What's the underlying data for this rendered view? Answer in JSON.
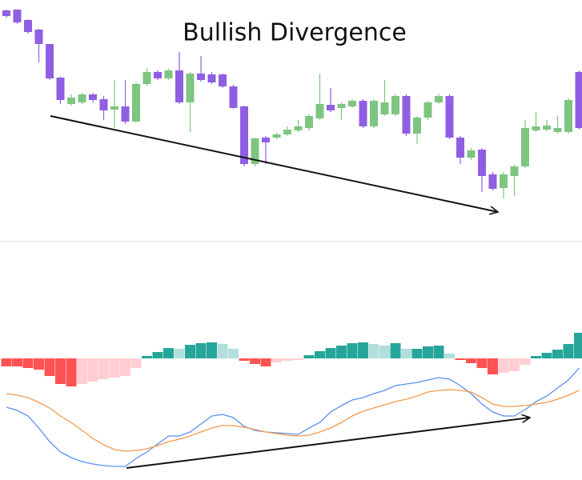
{
  "chart_data": [
    {
      "type": "candlestick",
      "title": "Bullish Divergence",
      "open": [
        287,
        288,
        275,
        263,
        245,
        203,
        170,
        172,
        182,
        176,
        163,
        167,
        148,
        195,
        210,
        202,
        212,
        172,
        208,
        207,
        207,
        192,
        167,
        95,
        128,
        128,
        132,
        137,
        140,
        152,
        169,
        165,
        167,
        174,
        142,
        157,
        157,
        180,
        133,
        153,
        172,
        180,
        128,
        103,
        113,
        82,
        65,
        80,
        92,
        137,
        138,
        135,
        135,
        210
      ],
      "high": [
        288,
        288,
        276,
        264,
        245,
        204,
        182,
        184,
        184,
        180,
        200,
        200,
        197,
        215,
        212,
        214,
        235,
        210,
        230,
        210,
        208,
        194,
        168,
        128,
        130,
        134,
        142,
        150,
        157,
        208,
        190,
        172,
        176,
        176,
        176,
        200,
        182,
        182,
        155,
        174,
        183,
        182,
        130,
        115,
        115,
        85,
        85,
        94,
        150,
        160,
        150,
        155,
        177,
        212
      ],
      "low": [
        278,
        270,
        258,
        222,
        200,
        170,
        168,
        170,
        172,
        150,
        140,
        145,
        147,
        193,
        200,
        200,
        170,
        135,
        198,
        195,
        190,
        164,
        92,
        92,
        95,
        126,
        130,
        135,
        137,
        150,
        160,
        150,
        165,
        140,
        140,
        155,
        155,
        130,
        120,
        150,
        170,
        126,
        95,
        100,
        60,
        62,
        52,
        55,
        90,
        135,
        136,
        133,
        133,
        138
      ],
      "close": [
        280,
        272,
        260,
        245,
        202,
        175,
        178,
        182,
        175,
        162,
        167,
        148,
        195,
        210,
        202,
        212,
        172,
        208,
        200,
        197,
        192,
        165,
        95,
        127,
        122,
        132,
        138,
        142,
        155,
        170,
        162,
        170,
        174,
        142,
        174,
        172,
        180,
        133,
        153,
        172,
        180,
        128,
        103,
        112,
        80,
        64,
        82,
        92,
        140,
        142,
        143,
        140,
        175,
        140
      ],
      "up_color": "#7dc580",
      "down_color": "#8f5fe3",
      "ylim": [
        0,
        300
      ]
    },
    {
      "type": "macd",
      "values": [
        -10,
        -10,
        -12,
        -14,
        -22,
        -32,
        -35,
        -32,
        -29,
        -26,
        -24,
        -22,
        -12,
        3,
        8,
        13,
        12,
        17,
        19,
        20,
        18,
        12,
        -3,
        -7,
        -10,
        -5,
        -3,
        -2,
        4,
        9,
        13,
        16,
        19,
        20,
        18,
        16,
        19,
        12,
        12,
        15,
        16,
        6,
        -2,
        -6,
        -12,
        -20,
        -18,
        -16,
        -8,
        3,
        7,
        11,
        18,
        32
      ],
      "colors": {
        "pos_up": "#26a69a",
        "pos_down": "#b2dfdb",
        "neg_down": "#ff5252",
        "neg_up": "#ffcdd2"
      },
      "series": [
        {
          "color": "#5b8ff0",
          "values": [
            -61,
            -65,
            -72,
            -87,
            -104,
            -117,
            -124,
            -129,
            -132,
            -134,
            -135,
            -135,
            -125,
            -117,
            -107,
            -97,
            -97,
            -92,
            -82,
            -72,
            -70,
            -74,
            -85,
            -90,
            -92,
            -93,
            -94,
            -95,
            -87,
            -80,
            -67,
            -59,
            -52,
            -49,
            -44,
            -40,
            -34,
            -32,
            -30,
            -27,
            -24,
            -26,
            -34,
            -44,
            -57,
            -67,
            -72,
            -72,
            -64,
            -54,
            -47,
            -37,
            -27,
            -12
          ]
        },
        {
          "color": "#f39a4a",
          "values": [
            -44,
            -46,
            -49,
            -55,
            -62,
            -72,
            -80,
            -90,
            -100,
            -108,
            -114,
            -116,
            -115,
            -113,
            -109,
            -104,
            -101,
            -97,
            -92,
            -87,
            -84,
            -84,
            -86,
            -89,
            -92,
            -94,
            -96,
            -97,
            -96,
            -92,
            -87,
            -80,
            -72,
            -66,
            -62,
            -58,
            -54,
            -51,
            -47,
            -42,
            -40,
            -39,
            -40,
            -42,
            -49,
            -57,
            -60,
            -60,
            -59,
            -57,
            -55,
            -51,
            -46,
            -40
          ]
        }
      ],
      "ylim": [
        -152,
        144
      ]
    }
  ]
}
